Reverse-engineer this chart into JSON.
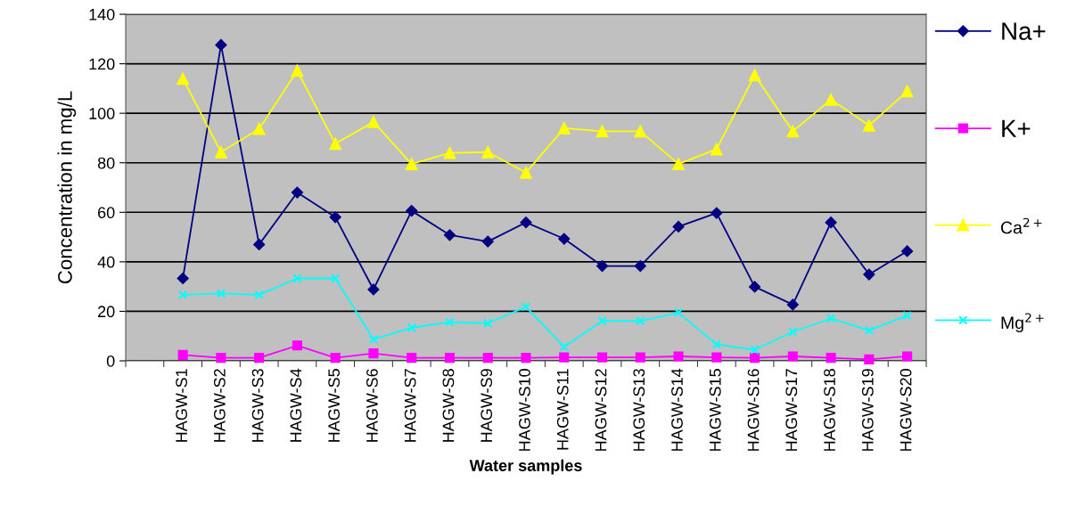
{
  "chart_data": {
    "type": "line",
    "xlabel": "Water samples",
    "ylabel": "Concentration in mg/L",
    "categories": [
      null,
      "HAGW-S1",
      "HAGW-S2",
      "HAGW-S3",
      "HAGW-S4",
      "HAGW-S5",
      "HAGW-S6",
      "HAGW-S7",
      "HAGW-S8",
      "HAGW-S9",
      "HAGW-S10",
      "HAGW-S11",
      "HAGW-S12",
      "HAGW-S13",
      "HAGW-S14",
      "HAGW-S15",
      "HAGW-S16",
      "HAGW-S17",
      "HAGW-S18",
      "HAGW-S19",
      "HAGW-S20"
    ],
    "series": [
      {
        "name": "Na+",
        "color": "#000080",
        "marker": "diamond",
        "values": [
          null,
          33.3,
          127.6,
          47,
          68,
          58,
          28.8,
          60.6,
          50.8,
          48.2,
          55.9,
          49.3,
          38.3,
          38.3,
          54.2,
          59.7,
          29.9,
          22.7,
          55.9,
          34.9,
          44.3
        ]
      },
      {
        "name": "K+",
        "color": "#ff00ff",
        "marker": "square",
        "values": [
          null,
          2.4,
          1.2,
          1.2,
          6.2,
          1.2,
          3,
          1.2,
          1.2,
          1.2,
          1.2,
          1.4,
          1.4,
          1.4,
          1.8,
          1.4,
          1.2,
          1.8,
          1.2,
          0.6,
          1.8
        ]
      },
      {
        "name": "Ca$^{2+}$",
        "color": "#ffff00",
        "marker": "triangle",
        "values": [
          null,
          114,
          84.3,
          93.7,
          117.2,
          87.7,
          96.5,
          79.5,
          84,
          84.3,
          76,
          94,
          92.7,
          92.7,
          79.5,
          85.5,
          115.4,
          92.7,
          105.5,
          95.1,
          108.9
        ]
      },
      {
        "name": "Mg$^{2+}$",
        "color": "#00ffff",
        "marker": "cross",
        "values": [
          null,
          26.7,
          27.2,
          26.7,
          33.3,
          33.3,
          8.7,
          13.4,
          15.6,
          15.2,
          21.8,
          5.6,
          16.1,
          16.1,
          19.5,
          6.6,
          4.5,
          11.7,
          17.1,
          12.3,
          18.3
        ]
      }
    ],
    "ylim": [
      0,
      140
    ],
    "yticks": [
      0,
      20,
      40,
      60,
      80,
      100,
      120,
      140
    ],
    "grid": "y",
    "legend": "right",
    "line_style": "solid"
  }
}
